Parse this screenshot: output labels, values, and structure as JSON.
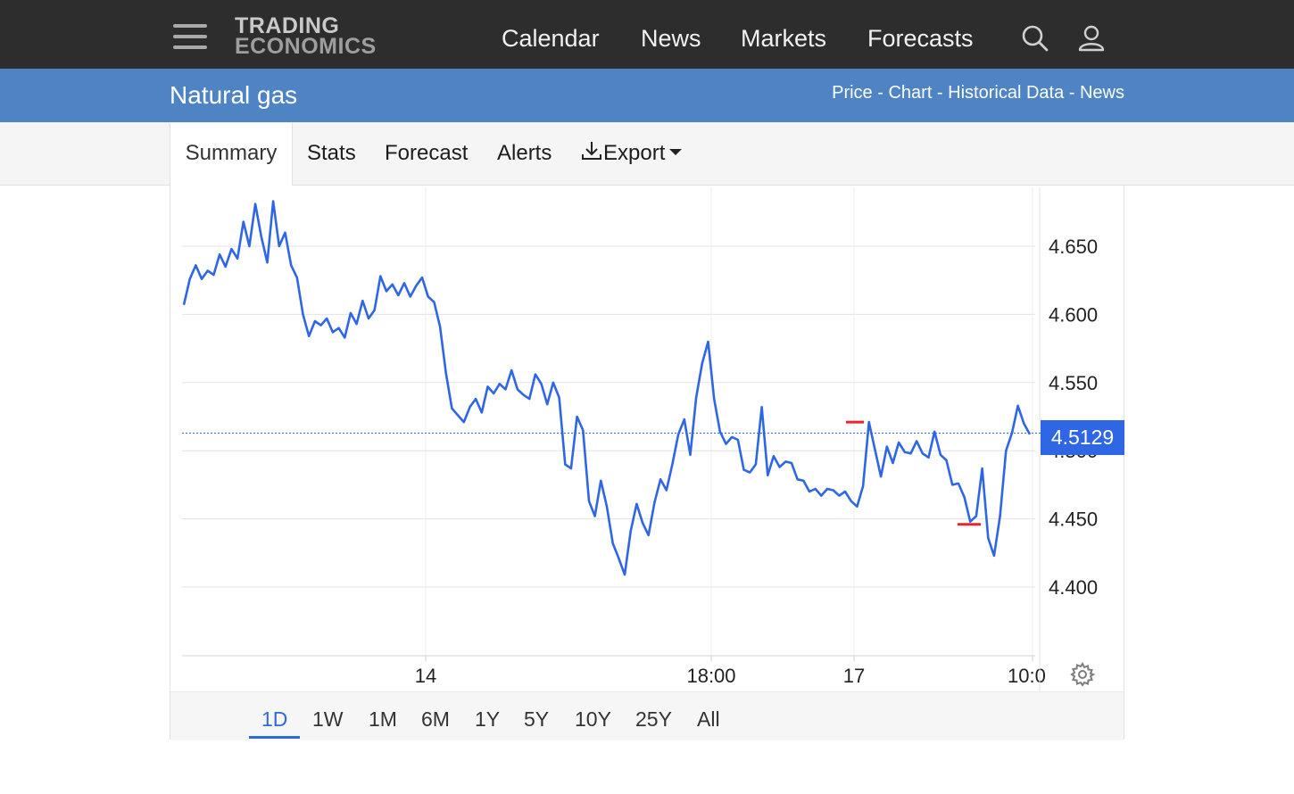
{
  "header": {
    "logo_line1": "TRADING",
    "logo_line2": "ECONOMICS",
    "nav": [
      "Calendar",
      "News",
      "Markets",
      "Forecasts"
    ],
    "icons": [
      "menu-icon",
      "search-icon",
      "user-icon"
    ]
  },
  "subheader": {
    "title": "Natural gas",
    "links": [
      "Price",
      "Chart",
      "Historical Data",
      "News"
    ],
    "separator": " - "
  },
  "tabs": {
    "summary": "Summary",
    "stats": "Stats",
    "forecast": "Forecast",
    "alerts": "Alerts",
    "export": "Export"
  },
  "ranges": [
    "1D",
    "1W",
    "1M",
    "6M",
    "1Y",
    "5Y",
    "10Y",
    "25Y",
    "All"
  ],
  "selected_range": "1D",
  "price_badge": "4.5129",
  "colors": {
    "topbar": "#2d2d2d",
    "bluebar": "#4f84c4",
    "line": "#2f66e4",
    "marker": "#e8242e",
    "badge": "#2f66e4"
  },
  "chart_data": {
    "type": "line",
    "ylim": [
      4.35,
      4.69
    ],
    "yticks": [
      4.4,
      4.45,
      4.5,
      4.55,
      4.6,
      4.65
    ],
    "ytick_labels": [
      "4.400",
      "4.450",
      "4.500",
      "4.550",
      "4.600",
      "4.650"
    ],
    "xticks": [
      "14",
      "18:00",
      "17",
      "10:0"
    ],
    "current_price": 4.5129,
    "high_marker": 4.521,
    "low_marker": 4.446,
    "series": [
      {
        "values": [
          4.607,
          4.626,
          4.636,
          4.626,
          4.632,
          4.629,
          4.644,
          4.635,
          4.648,
          4.641,
          4.668,
          4.65,
          4.681,
          4.657,
          4.638,
          4.683,
          4.65,
          4.66,
          4.636,
          4.627,
          4.6,
          4.584,
          4.595,
          4.592,
          4.597,
          4.587,
          4.59,
          4.583,
          4.601,
          4.593,
          4.61,
          4.597,
          4.603,
          4.628,
          4.617,
          4.622,
          4.614,
          4.623,
          4.613,
          4.621,
          4.627,
          4.613,
          4.609,
          4.591,
          4.557,
          4.531,
          4.526,
          4.521,
          4.532,
          4.538,
          4.528,
          4.547,
          4.542,
          4.549,
          4.545,
          4.559,
          4.545,
          4.541,
          4.538,
          4.556,
          4.549,
          4.534,
          4.55,
          4.539,
          4.49,
          4.487,
          4.525,
          4.515,
          4.463,
          4.452,
          4.478,
          4.459,
          4.432,
          4.421,
          4.409,
          4.441,
          4.461,
          4.447,
          4.438,
          4.462,
          4.479,
          4.471,
          4.49,
          4.512,
          4.523,
          4.497,
          4.539,
          4.564,
          4.58,
          4.538,
          4.514,
          4.505,
          4.51,
          4.508,
          4.486,
          4.484,
          4.49,
          4.532,
          4.482,
          4.496,
          4.488,
          4.492,
          4.491,
          4.479,
          4.478,
          4.47,
          4.472,
          4.467,
          4.472,
          4.471,
          4.467,
          4.47,
          4.463,
          4.459,
          4.474,
          4.521,
          4.501,
          4.481,
          4.503,
          4.491,
          4.506,
          4.499,
          4.498,
          4.507,
          4.498,
          4.495,
          4.514,
          4.497,
          4.493,
          4.475,
          4.476,
          4.466,
          4.448,
          4.452,
          4.487,
          4.436,
          4.423,
          4.452,
          4.5,
          4.513,
          4.533,
          4.52,
          4.512
        ]
      }
    ]
  }
}
